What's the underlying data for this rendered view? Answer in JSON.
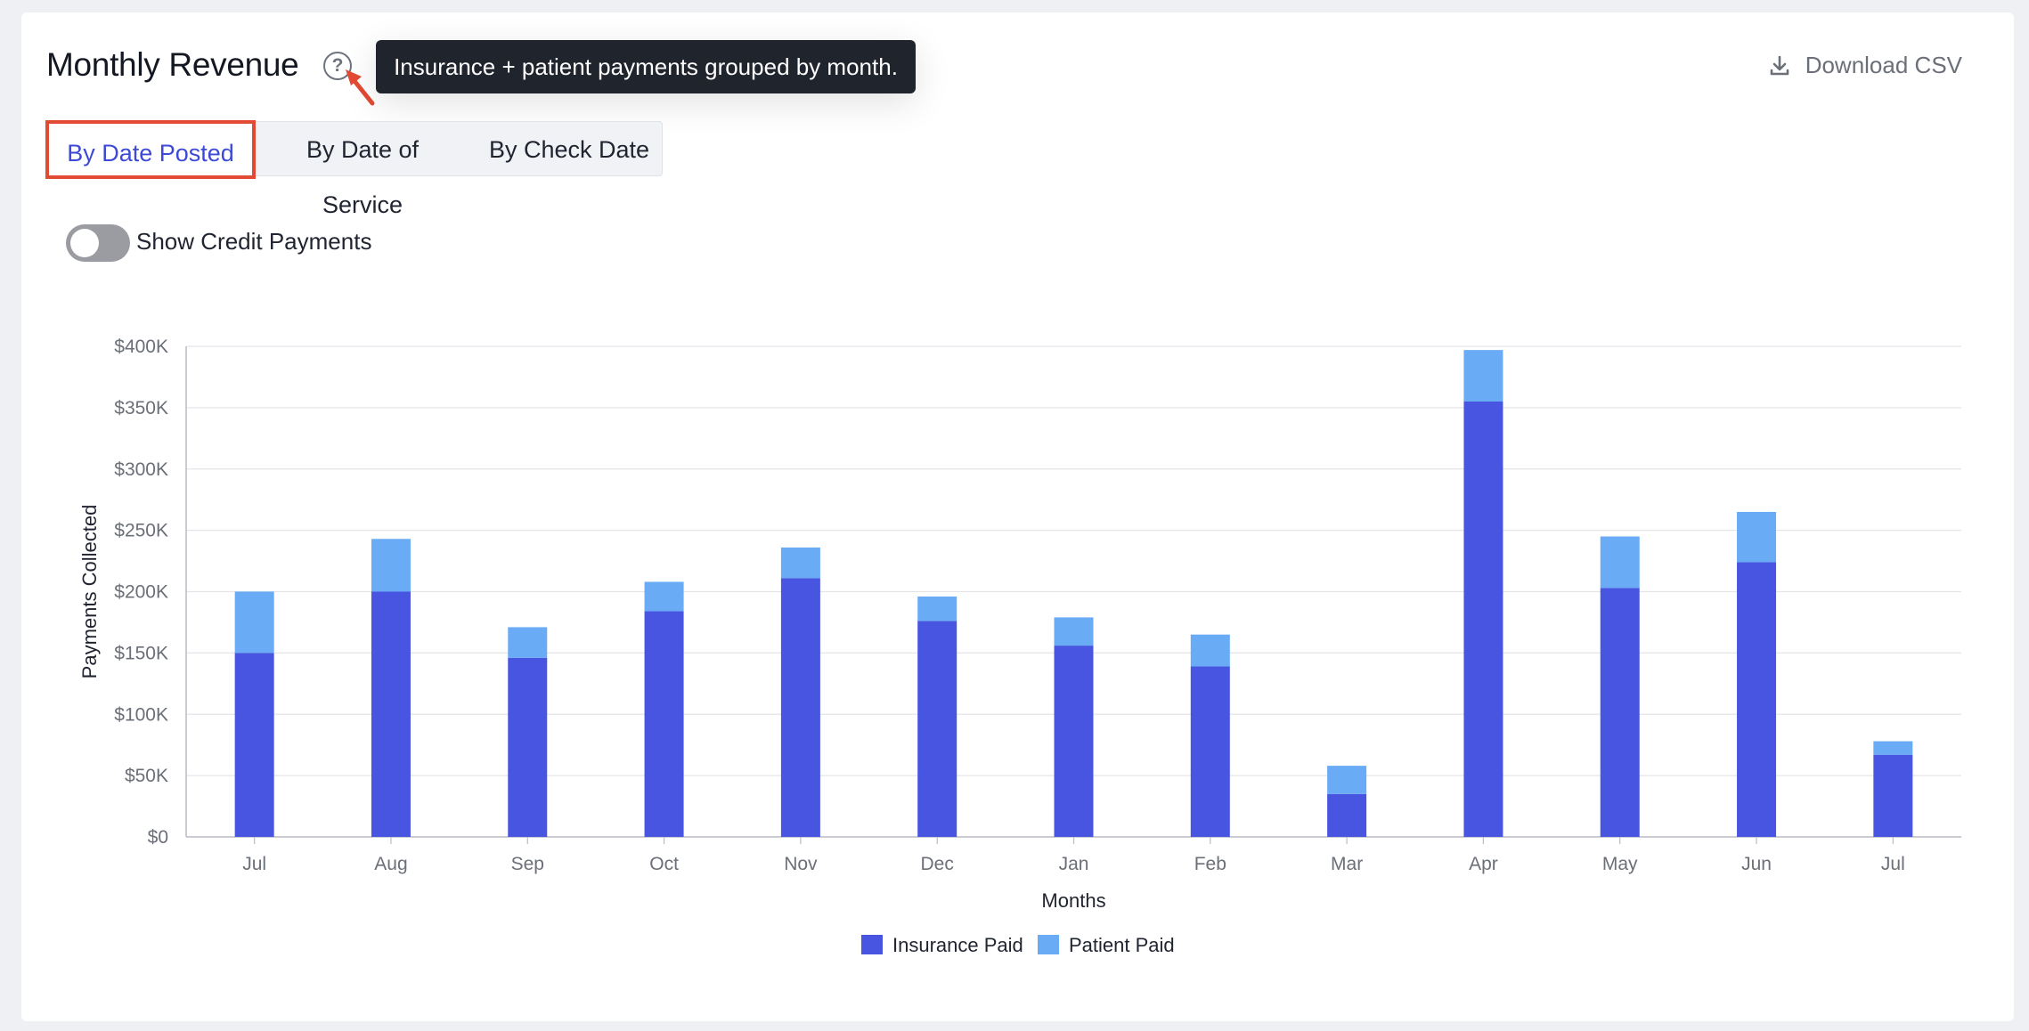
{
  "header": {
    "title": "Monthly Revenue",
    "help_icon": "question-circle-icon",
    "tooltip": "Insurance + patient payments grouped by month.",
    "download_label": "Download CSV",
    "download_icon": "download-icon"
  },
  "tabs": [
    {
      "label": "By Date Posted",
      "active": true
    },
    {
      "label": "By Date of Service",
      "active": false
    },
    {
      "label": "By Check Date",
      "active": false
    }
  ],
  "toggle": {
    "label": "Show Credit Payments",
    "checked": false
  },
  "colors": {
    "insurance": "#4755e0",
    "patient": "#69abf5",
    "accent": "#3c4ad6",
    "highlight": "#e34a33"
  },
  "chart_data": {
    "type": "bar",
    "stacked": true,
    "categories": [
      "Jul",
      "Aug",
      "Sep",
      "Oct",
      "Nov",
      "Dec",
      "Jan",
      "Feb",
      "Mar",
      "Apr",
      "May",
      "Jun",
      "Jul"
    ],
    "series": [
      {
        "name": "Insurance Paid",
        "values": [
          150000,
          200000,
          146000,
          184000,
          211000,
          176000,
          156000,
          139000,
          35000,
          355000,
          203000,
          224000,
          67000
        ]
      },
      {
        "name": "Patient Paid",
        "values": [
          50000,
          43000,
          25000,
          24000,
          25000,
          20000,
          23000,
          26000,
          23000,
          42000,
          42000,
          41000,
          11000
        ]
      }
    ],
    "xlabel": "Months",
    "ylabel": "Payments Collected",
    "ylim": [
      0,
      400000
    ],
    "yticks": [
      0,
      50000,
      100000,
      150000,
      200000,
      250000,
      300000,
      350000,
      400000
    ],
    "ytick_labels": [
      "$0",
      "$50K",
      "$100K",
      "$150K",
      "$200K",
      "$250K",
      "$300K",
      "$350K",
      "$400K"
    ],
    "grid": true,
    "legend_position": "bottom-center"
  }
}
